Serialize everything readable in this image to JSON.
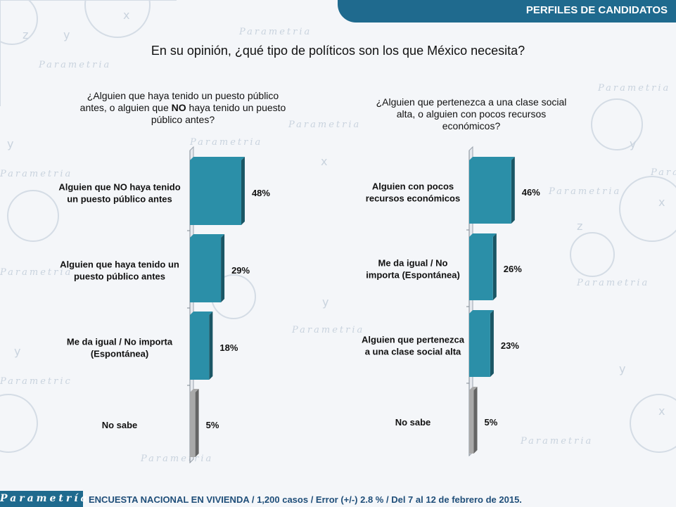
{
  "header": {
    "title": "PERFILES DE CANDIDATOS"
  },
  "main_question": "En su opinión, ¿qué tipo de políticos son los que México necesita?",
  "left": {
    "question_line1": "¿Alguien que haya tenido un puesto público",
    "question_line2_pre": "antes, o alguien que ",
    "question_line2_bold": "NO",
    "question_line2_post": " haya tenido un puesto",
    "question_line3": "público antes?"
  },
  "right": {
    "question_line1": "¿Alguien que pertenezca a una clase social",
    "question_line2": "alta, o alguien con pocos recursos",
    "question_line3": "económicos?"
  },
  "chart_data": [
    {
      "type": "bar",
      "orientation": "horizontal",
      "categories": [
        [
          "Alguien que NO haya tenido",
          "un puesto público antes"
        ],
        [
          "Alguien que haya tenido un",
          "puesto público antes"
        ],
        [
          "Me da igual / No importa",
          "(Espontánea)"
        ],
        [
          "No sabe"
        ]
      ],
      "values": [
        48,
        29,
        18,
        5
      ],
      "value_labels": [
        "48%",
        "29%",
        "18%",
        "5%"
      ],
      "colors": [
        "#2b8fa8",
        "#2b8fa8",
        "#2b8fa8",
        "#a9a9a9"
      ]
    },
    {
      "type": "bar",
      "orientation": "horizontal",
      "categories": [
        [
          "Alguien con pocos",
          "recursos económicos"
        ],
        [
          "Me da igual / No",
          "importa (Espontánea)"
        ],
        [
          "Alguien que pertenezca",
          "a una clase social alta"
        ],
        [
          "No sabe"
        ]
      ],
      "values": [
        46,
        26,
        23,
        5
      ],
      "value_labels": [
        "46%",
        "26%",
        "23%",
        "5%"
      ],
      "colors": [
        "#2b8fa8",
        "#2b8fa8",
        "#2b8fa8",
        "#a9a9a9"
      ]
    }
  ],
  "footer": {
    "logo": "Parametría",
    "note": "ENCUESTA NACIONAL EN VIVIENDA / 1,200 casos / Error (+/-) 2.8 % / Del 7 al 12 de febrero de 2015."
  }
}
